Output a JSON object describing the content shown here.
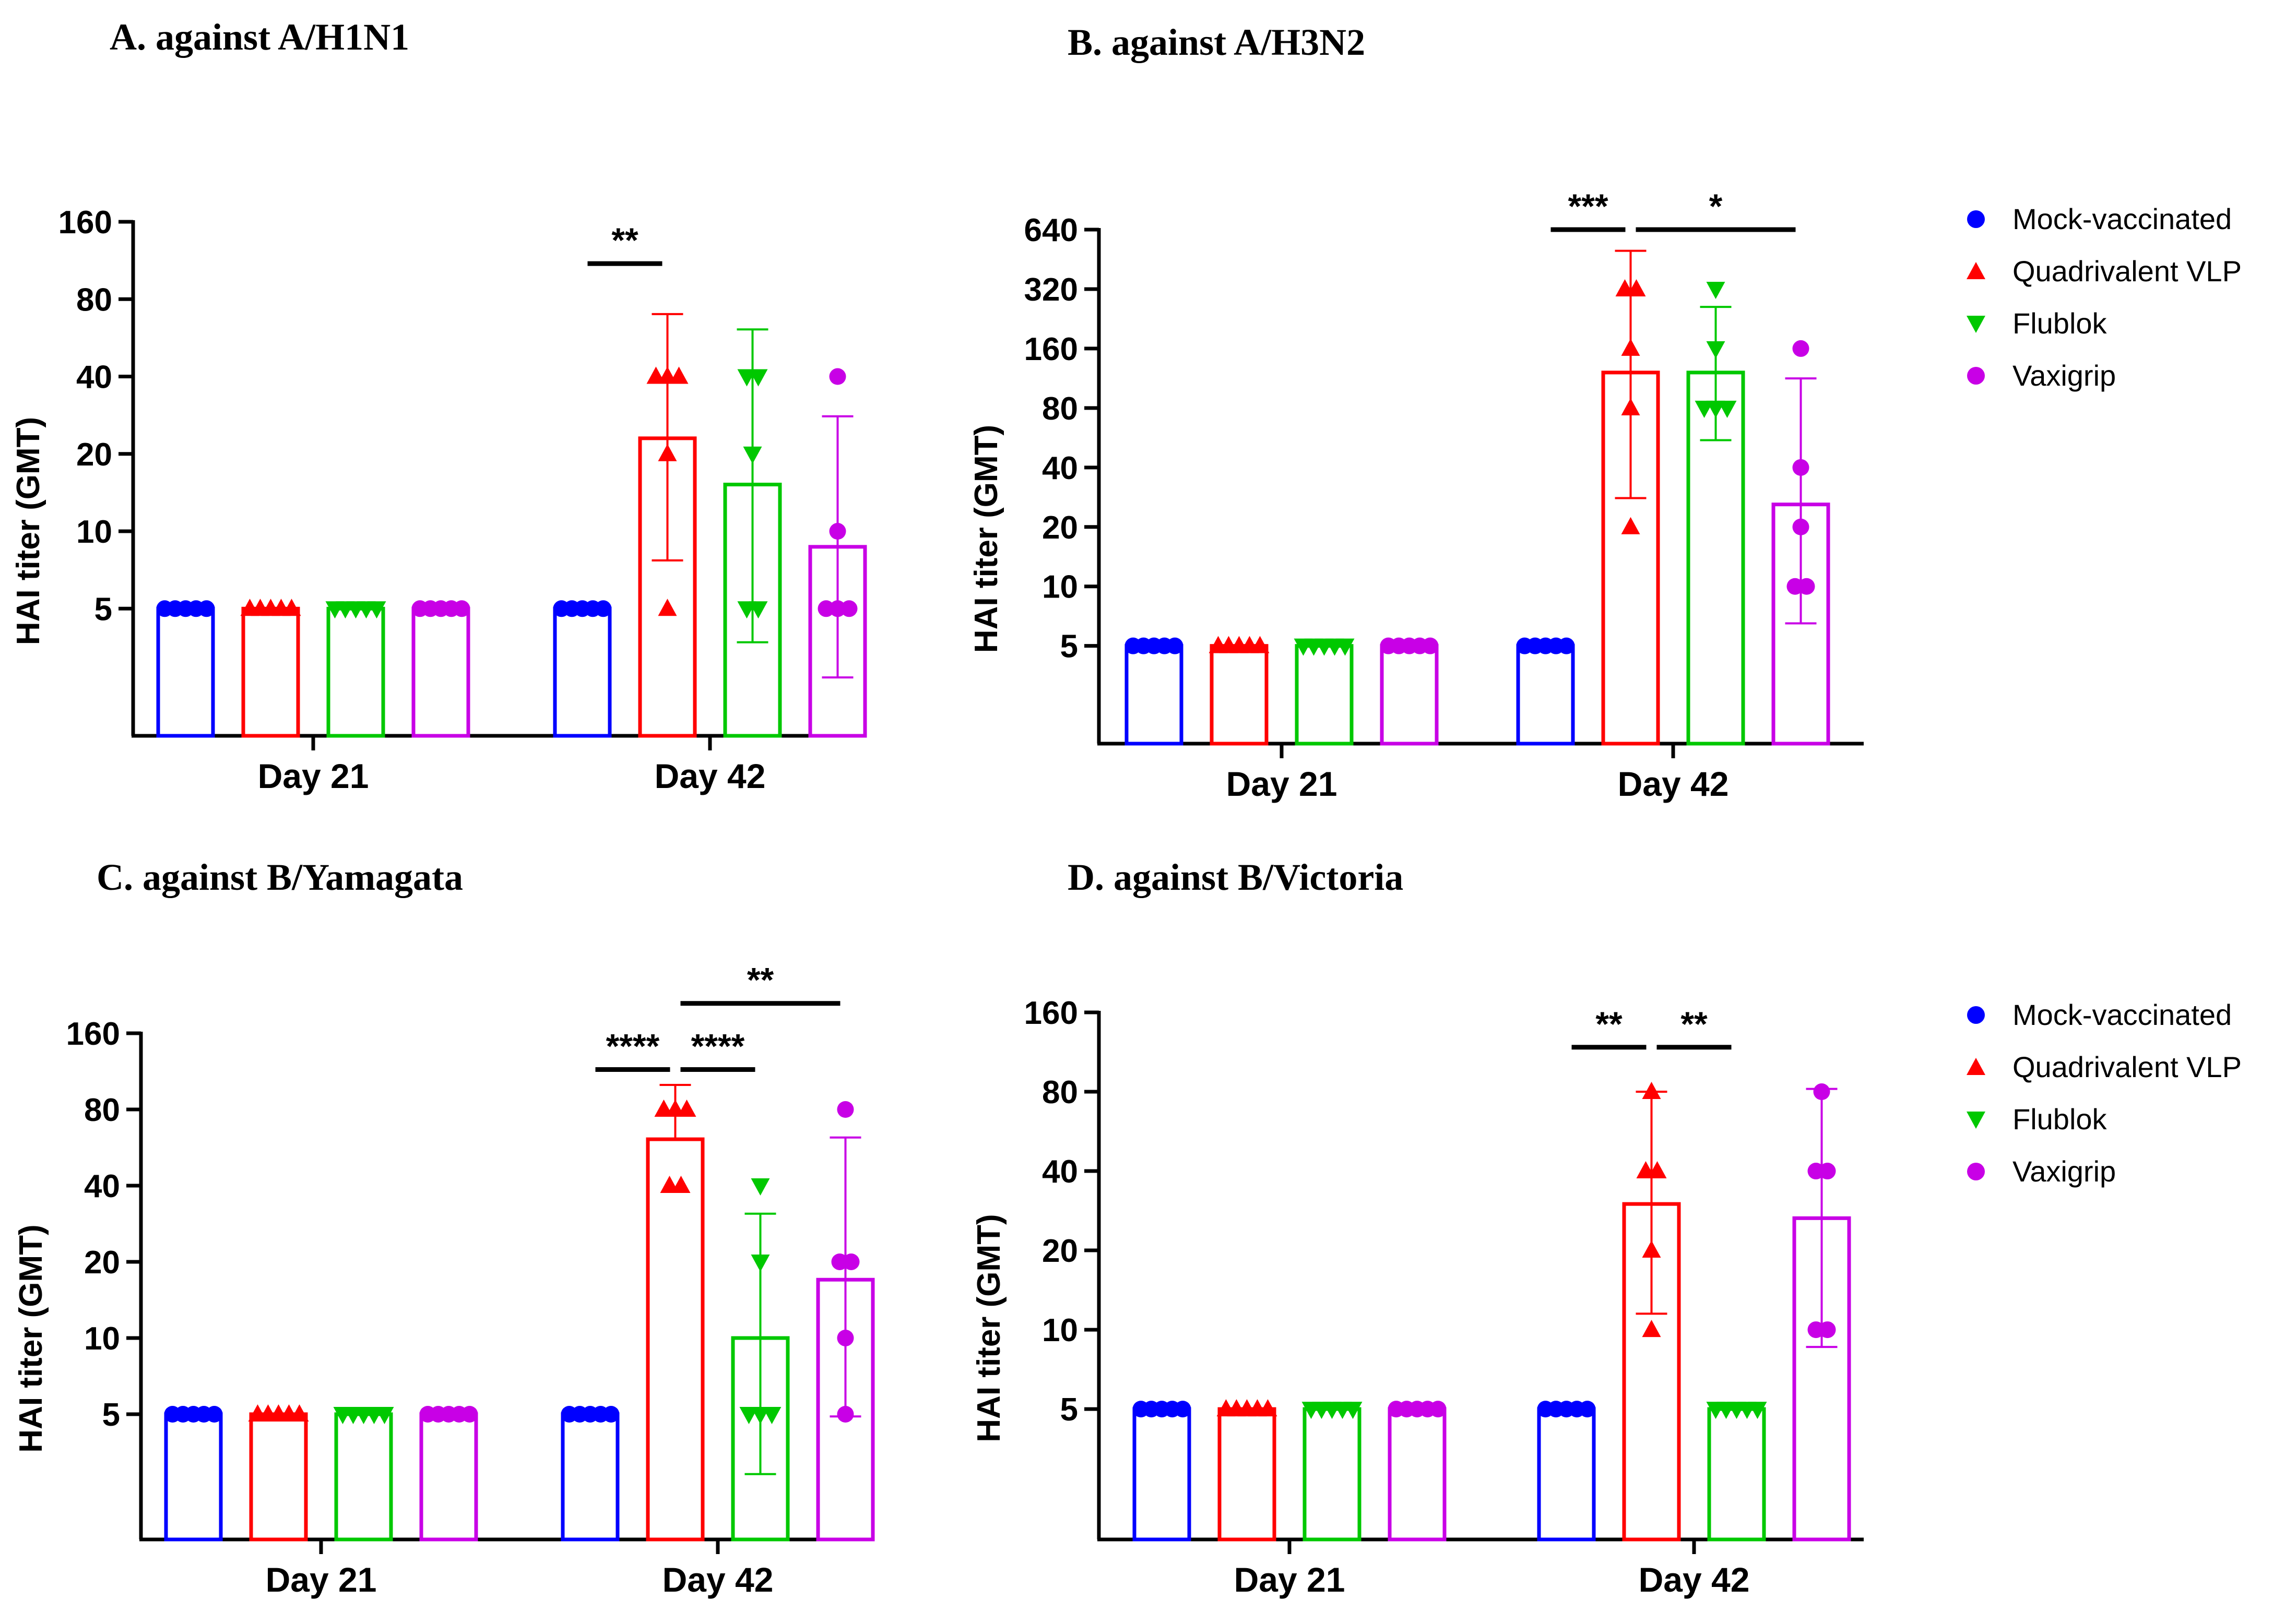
{
  "groups": [
    {
      "name": "Mock-vaccinated",
      "color": "#0000ff",
      "marker": "circle"
    },
    {
      "name": "Quadrivalent VLP",
      "color": "#ff0000",
      "marker": "triangle-up"
    },
    {
      "name": "Flublok",
      "color": "#00c800",
      "marker": "triangle-down"
    },
    {
      "name": "Vaxigrip",
      "color": "#c800e6",
      "marker": "circle"
    }
  ],
  "chart_data": [
    {
      "type": "bar",
      "title": "A. against A/H1N1",
      "ylabel": "HAI titer (GMT)",
      "yscale": "log2",
      "ylim": [
        1.6,
        160
      ],
      "yticks": [
        5,
        10,
        20,
        40,
        80,
        160
      ],
      "categories": [
        "Day 21",
        "Day 42"
      ],
      "series": [
        {
          "name": "Mock-vaccinated",
          "values": [
            5,
            5
          ],
          "errors": [
            [
              5,
              5
            ],
            [
              5,
              5
            ]
          ],
          "points": [
            [
              5,
              5,
              5,
              5,
              5
            ],
            [
              5,
              5,
              5,
              5,
              5
            ]
          ]
        },
        {
          "name": "Quadrivalent VLP",
          "values": [
            5,
            23
          ],
          "errors": [
            [
              5,
              5
            ],
            [
              7.7,
              70
            ]
          ],
          "points": [
            [
              5,
              5,
              5,
              5,
              5
            ],
            [
              5,
              20,
              40,
              40,
              40
            ]
          ]
        },
        {
          "name": "Flublok",
          "values": [
            5,
            15.2
          ],
          "errors": [
            [
              5,
              5
            ],
            [
              3.7,
              61
            ]
          ],
          "points": [
            [
              5,
              5,
              5,
              5,
              5
            ],
            [
              5,
              5,
              20,
              40,
              40
            ]
          ]
        },
        {
          "name": "Vaxigrip",
          "values": [
            5,
            8.7
          ],
          "errors": [
            [
              5,
              5
            ],
            [
              2.7,
              28
            ]
          ],
          "points": [
            [
              5,
              5,
              5,
              5,
              5
            ],
            [
              5,
              5,
              5,
              10,
              40
            ]
          ]
        }
      ],
      "significance": [
        {
          "label": "**",
          "from": "Mock-vaccinated",
          "to": "Quadrivalent VLP",
          "category": "Day 42",
          "level": 110
        }
      ]
    },
    {
      "type": "bar",
      "title": "B. against A/H3N2",
      "ylabel": "HAI titer (GMT)",
      "yscale": "log2",
      "ylim": [
        1.6,
        640
      ],
      "yticks": [
        5,
        10,
        20,
        40,
        80,
        160,
        320,
        640
      ],
      "categories": [
        "Day 21",
        "Day 42"
      ],
      "series": [
        {
          "name": "Mock-vaccinated",
          "values": [
            5,
            5
          ],
          "errors": [
            [
              5,
              5
            ],
            [
              5,
              5
            ]
          ],
          "points": [
            [
              5,
              5,
              5,
              5,
              5
            ],
            [
              5,
              5,
              5,
              5,
              5
            ]
          ]
        },
        {
          "name": "Quadrivalent VLP",
          "values": [
            5,
            121
          ],
          "errors": [
            [
              5,
              5
            ],
            [
              28,
              500
            ]
          ],
          "points": [
            [
              5,
              5,
              5,
              5,
              5
            ],
            [
              20,
              80,
              160,
              320,
              320
            ]
          ]
        },
        {
          "name": "Flublok",
          "values": [
            5,
            121
          ],
          "errors": [
            [
              5,
              5
            ],
            [
              55,
              260
            ]
          ],
          "points": [
            [
              5,
              5,
              5,
              5,
              5
            ],
            [
              80,
              80,
              80,
              160,
              320
            ]
          ]
        },
        {
          "name": "Vaxigrip",
          "values": [
            5,
            26
          ],
          "errors": [
            [
              5,
              5
            ],
            [
              6.5,
              113
            ]
          ],
          "points": [
            [
              5,
              5,
              5,
              5,
              5
            ],
            [
              10,
              10,
              20,
              40,
              160
            ]
          ]
        }
      ],
      "significance": [
        {
          "label": "***",
          "from": "Mock-vaccinated",
          "to": "Quadrivalent VLP",
          "category": "Day 42",
          "level": 640
        },
        {
          "label": "*",
          "from": "Quadrivalent VLP",
          "to": "Vaxigrip",
          "category": "Day 42",
          "level": 640
        }
      ]
    },
    {
      "type": "bar",
      "title": "C. against B/Yamagata",
      "ylabel": "HAI titer (GMT)",
      "yscale": "log2",
      "ylim": [
        1.6,
        160
      ],
      "yticks": [
        5,
        10,
        20,
        40,
        80,
        160
      ],
      "categories": [
        "Day 21",
        "Day 42"
      ],
      "series": [
        {
          "name": "Mock-vaccinated",
          "values": [
            5,
            5
          ],
          "errors": [
            [
              5,
              5
            ],
            [
              5,
              5
            ]
          ],
          "points": [
            [
              5,
              5,
              5,
              5,
              5
            ],
            [
              5,
              5,
              5,
              5,
              5
            ]
          ]
        },
        {
          "name": "Quadrivalent VLP",
          "values": [
            5,
            61
          ],
          "errors": [
            [
              5,
              5
            ],
            [
              61,
              100
            ]
          ],
          "points": [
            [
              5,
              5,
              5,
              5,
              5
            ],
            [
              40,
              40,
              80,
              80,
              80
            ]
          ]
        },
        {
          "name": "Flublok",
          "values": [
            5,
            10
          ],
          "errors": [
            [
              5,
              5
            ],
            [
              2.9,
              31
            ]
          ],
          "points": [
            [
              5,
              5,
              5,
              5,
              5
            ],
            [
              5,
              5,
              5,
              20,
              40
            ]
          ]
        },
        {
          "name": "Vaxigrip",
          "values": [
            5,
            17
          ],
          "errors": [
            [
              5,
              5
            ],
            [
              4.9,
              62
            ]
          ],
          "points": [
            [
              5,
              5,
              5,
              5,
              5
            ],
            [
              5,
              10,
              20,
              20,
              80
            ]
          ]
        }
      ],
      "significance": [
        {
          "label": "****",
          "from": "Mock-vaccinated",
          "to": "Quadrivalent VLP",
          "category": "Day 42",
          "level": 115
        },
        {
          "label": "****",
          "from": "Quadrivalent VLP",
          "to": "Flublok",
          "category": "Day 42",
          "level": 115
        },
        {
          "label": "**",
          "from": "Quadrivalent VLP",
          "to": "Vaxigrip",
          "category": "Day 42",
          "level": 210
        }
      ]
    },
    {
      "type": "bar",
      "title": "D. against B/Victoria",
      "ylabel": "HAI titer (GMT)",
      "yscale": "log2",
      "ylim": [
        1.6,
        160
      ],
      "yticks": [
        5,
        10,
        20,
        40,
        80,
        160
      ],
      "categories": [
        "Day 21",
        "Day 42"
      ],
      "series": [
        {
          "name": "Mock-vaccinated",
          "values": [
            5,
            5
          ],
          "errors": [
            [
              5,
              5
            ],
            [
              5,
              5
            ]
          ],
          "points": [
            [
              5,
              5,
              5,
              5,
              5
            ],
            [
              5,
              5,
              5,
              5,
              5
            ]
          ]
        },
        {
          "name": "Quadrivalent VLP",
          "values": [
            5,
            30
          ],
          "errors": [
            [
              5,
              5
            ],
            [
              11.5,
              80
            ]
          ],
          "points": [
            [
              5,
              5,
              5,
              5,
              5
            ],
            [
              10,
              20,
              40,
              40,
              80
            ]
          ]
        },
        {
          "name": "Flublok",
          "values": [
            5,
            5
          ],
          "errors": [
            [
              5,
              5
            ],
            [
              5,
              5
            ]
          ],
          "points": [
            [
              5,
              5,
              5,
              5,
              5
            ],
            [
              5,
              5,
              5,
              5,
              5
            ]
          ]
        },
        {
          "name": "Vaxigrip",
          "values": [
            5,
            26.5
          ],
          "errors": [
            [
              5,
              5
            ],
            [
              8.6,
              82
            ]
          ],
          "points": [
            [
              5,
              5,
              5,
              5,
              5
            ],
            [
              10,
              10,
              40,
              40,
              80
            ]
          ]
        }
      ],
      "significance": [
        {
          "label": "**",
          "from": "Mock-vaccinated",
          "to": "Quadrivalent VLP",
          "category": "Day 42",
          "level": 118
        },
        {
          "label": "**",
          "from": "Quadrivalent VLP",
          "to": "Flublok",
          "category": "Day 42",
          "level": 118
        }
      ]
    }
  ]
}
